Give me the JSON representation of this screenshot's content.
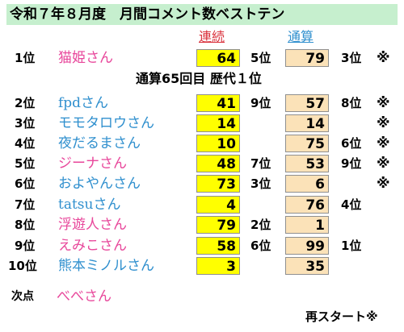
{
  "title": "令和７年８月度　月間コメント数ベストテン",
  "headers": {
    "consecutive": "連続",
    "cumulative": "通算"
  },
  "special_note": "通算65回目 歴代１位",
  "footer": "再スタート※",
  "rows": [
    {
      "rank": "1位",
      "name": "猫姫さん",
      "color": "#e8479b",
      "consec": "64",
      "consec_rank": "5位",
      "total": "79",
      "total_rank": "3位",
      "mark": "※"
    },
    {
      "rank": "2位",
      "name": "fpdさん",
      "color": "#2f8fce",
      "consec": "41",
      "consec_rank": "9位",
      "total": "57",
      "total_rank": "8位",
      "mark": "※"
    },
    {
      "rank": "3位",
      "name": "モモタロウさん",
      "color": "#2f8fce",
      "consec": "14",
      "consec_rank": "",
      "total": "14",
      "total_rank": "",
      "mark": "※"
    },
    {
      "rank": "4位",
      "name": "夜だるまさん",
      "color": "#2f8fce",
      "consec": "10",
      "consec_rank": "",
      "total": "75",
      "total_rank": "6位",
      "mark": "※"
    },
    {
      "rank": "5位",
      "name": "ジーナさん",
      "color": "#e8479b",
      "consec": "48",
      "consec_rank": "7位",
      "total": "53",
      "total_rank": "9位",
      "mark": "※"
    },
    {
      "rank": "6位",
      "name": "およやんさん",
      "color": "#2f8fce",
      "consec": "73",
      "consec_rank": "3位",
      "total": "6",
      "total_rank": "",
      "mark": "※"
    },
    {
      "rank": "7位",
      "name": "tatsuさん",
      "color": "#2f8fce",
      "consec": "4",
      "consec_rank": "",
      "total": "76",
      "total_rank": "4位",
      "mark": ""
    },
    {
      "rank": "8位",
      "name": "浮遊人さん",
      "color": "#e8479b",
      "consec": "79",
      "consec_rank": "2位",
      "total": "1",
      "total_rank": "",
      "mark": ""
    },
    {
      "rank": "9位",
      "name": "えみこさん",
      "color": "#e8479b",
      "consec": "58",
      "consec_rank": "6位",
      "total": "99",
      "total_rank": "1位",
      "mark": ""
    },
    {
      "rank": "10位",
      "name": "熊本ミノルさん",
      "color": "#2f8fce",
      "consec": "3",
      "consec_rank": "",
      "total": "35",
      "total_rank": "",
      "mark": ""
    }
  ],
  "next": {
    "label": "次点",
    "name": "べべさん",
    "color": "#e8479b"
  }
}
